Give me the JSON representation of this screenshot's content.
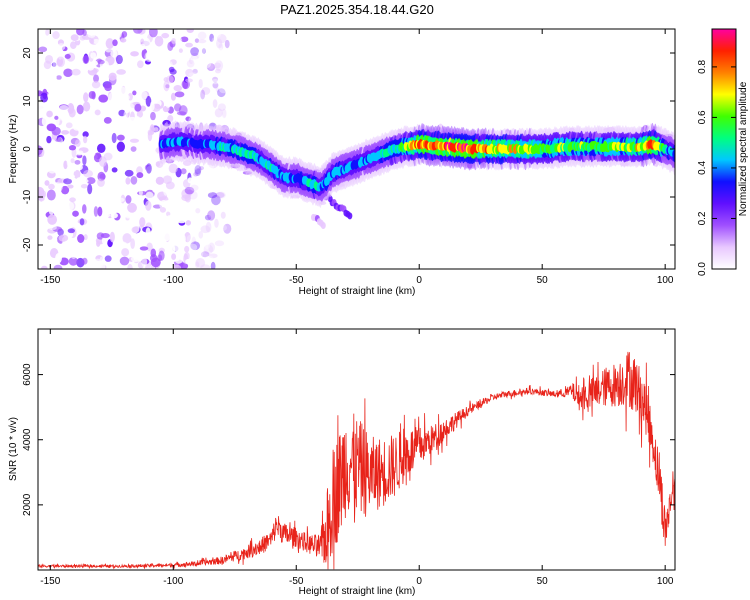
{
  "title": "PAZ1.2025.354.18.44.G20",
  "spectrogram": {
    "type": "heatmap",
    "xlabel": "Height of straight line (km)",
    "ylabel": "Frequency (Hz)",
    "xlim": [
      -155,
      104
    ],
    "ylim": [
      -25,
      25
    ],
    "xticks": [
      -150,
      -100,
      -50,
      0,
      50,
      100
    ],
    "yticks": [
      -20,
      -10,
      0,
      10,
      20
    ],
    "colorbar": {
      "label": "Normalized spectral amplitude",
      "ticks": [
        0.0,
        0.2,
        0.4,
        0.6,
        0.8
      ],
      "tick_labels": [
        "0.0",
        "0.2",
        "0.4",
        "0.6",
        "0.8"
      ],
      "range": [
        0,
        0.95
      ],
      "colors": [
        "#ffffff",
        "#e8c8ff",
        "#a050ff",
        "#6010ff",
        "#1010ff",
        "#00c8ff",
        "#00ff80",
        "#40ff00",
        "#ffff00",
        "#ff8000",
        "#ff2000",
        "#ff00a0"
      ]
    },
    "ridge": {
      "x": [
        -105,
        -100,
        -95,
        -90,
        -85,
        -80,
        -75,
        -70,
        -65,
        -60,
        -55,
        -50,
        -45,
        -42,
        -40,
        -35,
        -30,
        -25,
        -20,
        -15,
        -10,
        -5,
        0,
        10,
        20,
        30,
        40,
        50,
        60,
        70,
        80,
        90,
        95,
        100,
        104
      ],
      "freq": [
        1,
        1.5,
        1.5,
        1,
        1,
        0.5,
        0,
        -1,
        -2,
        -4,
        -6,
        -6,
        -7,
        -7.5,
        -8,
        -5,
        -4,
        -3,
        -2,
        -1,
        0,
        0.5,
        1,
        0.5,
        0,
        0,
        0,
        0,
        0.5,
        0.5,
        0.5,
        0.5,
        1,
        0,
        -1
      ],
      "amp": [
        0.35,
        0.4,
        0.35,
        0.35,
        0.4,
        0.45,
        0.45,
        0.5,
        0.4,
        0.45,
        0.4,
        0.35,
        0.45,
        0.5,
        0.4,
        0.4,
        0.4,
        0.35,
        0.4,
        0.45,
        0.5,
        0.6,
        0.8,
        0.8,
        0.85,
        0.7,
        0.7,
        0.6,
        0.6,
        0.55,
        0.6,
        0.65,
        0.8,
        0.45,
        0.4
      ]
    },
    "branches": [
      {
        "x": [
          -45,
          -42,
          -40,
          -37,
          -35,
          -33,
          -30,
          -28
        ],
        "freq": [
          -7,
          -8,
          -9,
          -10,
          -11,
          -12,
          -13,
          -14
        ],
        "amp": 0.25
      },
      {
        "x": [
          -52,
          -50,
          -48
        ],
        "freq": [
          -4,
          -5,
          -6
        ],
        "amp": 0.4
      },
      {
        "x": [
          -43,
          -41,
          -39
        ],
        "freq": [
          -14,
          -15,
          -16
        ],
        "amp": 0.15
      }
    ],
    "noise_region": {
      "x_range": [
        -155,
        -78
      ],
      "freq_range": [
        -25,
        25
      ],
      "amp_range": [
        0.0,
        0.25
      ]
    }
  },
  "snr": {
    "type": "line",
    "xlabel": "Height of straight line (km)",
    "ylabel": "SNR (10 * v/v)",
    "xlim": [
      -155,
      104
    ],
    "ylim": [
      0,
      7400
    ],
    "xticks": [
      -150,
      -100,
      -50,
      0,
      50,
      100
    ],
    "yticks": [
      2000,
      4000,
      6000
    ],
    "color": "#e8231a",
    "envelope": {
      "x": [
        -155,
        -120,
        -100,
        -90,
        -80,
        -70,
        -65,
        -60,
        -58,
        -55,
        -50,
        -45,
        -40,
        -37,
        -35,
        -32,
        -30,
        -28,
        -25,
        -22,
        -20,
        -15,
        -10,
        -5,
        0,
        5,
        10,
        15,
        20,
        25,
        30,
        35,
        40,
        45,
        50,
        55,
        60,
        62,
        65,
        70,
        75,
        80,
        85,
        88,
        92,
        95,
        98,
        100,
        102,
        104
      ],
      "y": [
        120,
        120,
        150,
        200,
        300,
        550,
        700,
        950,
        1400,
        1100,
        1000,
        800,
        700,
        1300,
        2200,
        2700,
        3300,
        3300,
        3200,
        3000,
        2900,
        3000,
        3200,
        3600,
        3800,
        4000,
        4300,
        4600,
        4900,
        5100,
        5300,
        5400,
        5450,
        5500,
        5450,
        5400,
        5450,
        5500,
        5300,
        5400,
        5600,
        5700,
        5900,
        5700,
        5000,
        4000,
        2600,
        1200,
        2000,
        2800
      ],
      "jitter": [
        40,
        40,
        60,
        80,
        120,
        200,
        250,
        300,
        400,
        350,
        300,
        300,
        400,
        1400,
        1600,
        1700,
        1700,
        1600,
        1500,
        1400,
        1200,
        1100,
        1000,
        800,
        600,
        450,
        350,
        250,
        150,
        120,
        100,
        100,
        100,
        100,
        100,
        100,
        150,
        250,
        400,
        500,
        600,
        700,
        900,
        900,
        800,
        700,
        800,
        700,
        500,
        400
      ]
    }
  }
}
